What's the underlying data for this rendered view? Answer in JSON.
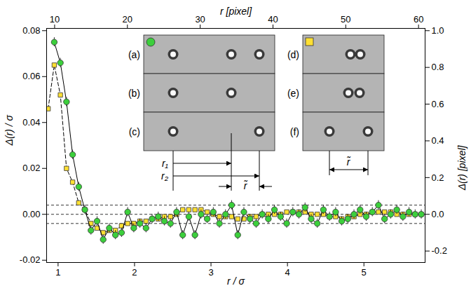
{
  "chart_data": {
    "type": "scatter",
    "xlabel": "r / σ",
    "ylabel": "Δ(r) / σ",
    "x2label": "r [pixel]",
    "y2label": "Δ(r) [pixel]",
    "xlim": [
      0.85,
      5.8
    ],
    "xticks": [
      1,
      2,
      3,
      4,
      5
    ],
    "ylim": [
      -0.021,
      0.081
    ],
    "yticks": [
      -0.02,
      {
        "value": 0,
        "label": "0.00"
      },
      0.02,
      0.04,
      0.06,
      0.08
    ],
    "x2lim": [
      8.9,
      60.9
    ],
    "x2ticks": [
      10,
      20,
      30,
      40,
      50,
      60
    ],
    "y2lim": [
      -0.2625,
      1.0125
    ],
    "y2ticks": [
      -0.2,
      {
        "value": 0,
        "label": "0.0"
      },
      0.2,
      0.4,
      0.6,
      0.8,
      {
        "value": 1,
        "label": "1.0"
      }
    ],
    "reference_lines": [
      -0.004,
      0,
      0.004
    ],
    "inset_labels": [
      "(a)",
      "(b)",
      "(c)",
      "(d)",
      "(e)",
      "(f)"
    ],
    "inset_annotations": [
      "r₁",
      "r₂",
      "r̃"
    ],
    "x": [
      0.87,
      0.95,
      1.03,
      1.11,
      1.19,
      1.27,
      1.35,
      1.43,
      1.51,
      1.59,
      1.67,
      1.75,
      1.83,
      1.91,
      1.99,
      2.07,
      2.15,
      2.23,
      2.31,
      2.39,
      2.47,
      2.55,
      2.63,
      2.71,
      2.79,
      2.87,
      2.95,
      3.03,
      3.11,
      3.19,
      3.27,
      3.35,
      3.43,
      3.51,
      3.59,
      3.67,
      3.75,
      3.83,
      3.91,
      3.99,
      4.07,
      4.15,
      4.23,
      4.31,
      4.39,
      4.47,
      4.55,
      4.63,
      4.71,
      4.79,
      4.87,
      4.95,
      5.03,
      5.11,
      5.19,
      5.27,
      5.35,
      5.43,
      5.51,
      5.59,
      5.67,
      5.75
    ],
    "series": [
      {
        "color": "#3ccf3c",
        "marker": "circle",
        "line_style": "solid",
        "values": [
          null,
          0.075,
          0.066,
          0.049,
          0.026,
          0.012,
          0.002,
          -0.007,
          -0.003,
          -0.011,
          -0.006,
          -0.009,
          -0.008,
          0.001,
          -0.006,
          -0.004,
          -0.006,
          -0.002,
          -0.001,
          -0.003,
          -0.004,
          0.001,
          -0.009,
          -0.001,
          -0.009,
          0,
          -0.002,
          0.001,
          -0.004,
          0,
          0.004,
          -0.009,
          0.001,
          -0.002,
          -0.004,
          0,
          -0.002,
          0.002,
          -0.001,
          -0.004,
          0.001,
          0,
          0.003,
          -0.002,
          -0.004,
          0.002,
          -0.001,
          0.001,
          -0.003,
          -0.002,
          0,
          0.002,
          -0.001,
          0.001,
          0.004,
          -0.002,
          0,
          0.002,
          -0.001,
          0.001,
          0,
          0
        ],
        "errors": [
          null,
          0.002,
          0.002,
          0.002,
          0.002,
          0.002,
          0.002,
          0.002,
          0.002,
          0.002,
          0.002,
          0.002,
          0.002,
          0.002,
          0.002,
          0.002,
          0.002,
          0.002,
          0.002,
          0.002,
          0.002,
          0.002,
          0.002,
          0.002,
          0.002,
          0.002,
          0.002,
          0.002,
          0.002,
          0.002,
          0.002,
          0.002,
          0.002,
          0.002,
          0.002,
          0.002,
          0.002,
          0.002,
          0.002,
          0.002,
          0.002,
          0.002,
          0.002,
          0.002,
          0.002,
          0.002,
          0.002,
          0.002,
          0.002,
          0.002,
          0.002,
          0.002,
          0.002,
          0.002,
          0.002,
          0.002,
          0.002,
          0.002,
          0.002,
          0.002,
          0.002,
          0.002
        ]
      },
      {
        "color": "#ffe033",
        "marker": "square",
        "line_style": "dashed",
        "values": [
          0.046,
          0.065,
          0.052,
          0.02,
          0.014,
          0.005,
          0.002,
          -0.004,
          -0.006,
          -0.008,
          -0.007,
          -0.007,
          -0.005,
          -0.004,
          -0.004,
          -0.003,
          -0.003,
          -0.002,
          -0.002,
          -0.001,
          -0.001,
          0,
          0.002,
          0.002,
          0.002,
          0.002,
          0.001,
          0,
          -0.001,
          -0.001,
          -0.001,
          -0.002,
          -0.002,
          -0.001,
          -0.001,
          0,
          0,
          0,
          0,
          0.001,
          0.001,
          0.001,
          0.001,
          0,
          0,
          0,
          -0.001,
          -0.001,
          -0.002,
          -0.001,
          -0.001,
          0,
          0,
          0.001,
          0.001,
          0.001,
          0.001,
          0,
          0,
          0,
          0,
          0
        ]
      }
    ]
  }
}
